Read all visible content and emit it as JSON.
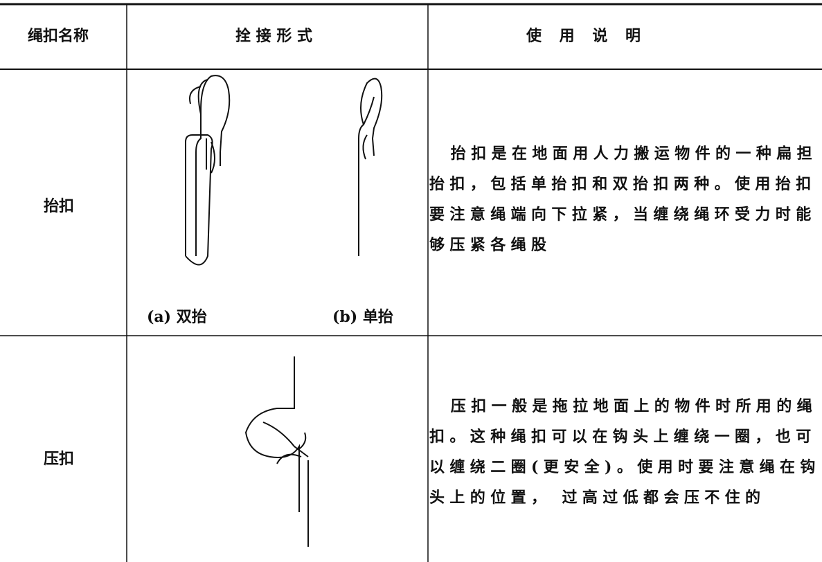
{
  "table": {
    "headers": [
      "绳扣名称",
      "拴 接 形 式",
      "使 用 说 明"
    ],
    "rows": [
      {
        "name": "抬扣",
        "captions": [
          "(a) 双抬",
          "(b) 单抬"
        ],
        "description": "抬扣是在地面用人力搬运物件的一种扁担抬扣，包括单抬扣和双抬扣两种。使用抬扣要注意绳端向下拉紧，当缠绕绳环受力时能够压紧各绳股"
      },
      {
        "name": "压扣",
        "description": "压扣一般是拖拉地面上的物件时所用的绳扣。这种绳扣可以在钩头上缠绕一圈，也可以缠绕二圈(更安全)。使用时要注意绳在钩头上的位置， 过高过低都会压不住的"
      }
    ]
  }
}
